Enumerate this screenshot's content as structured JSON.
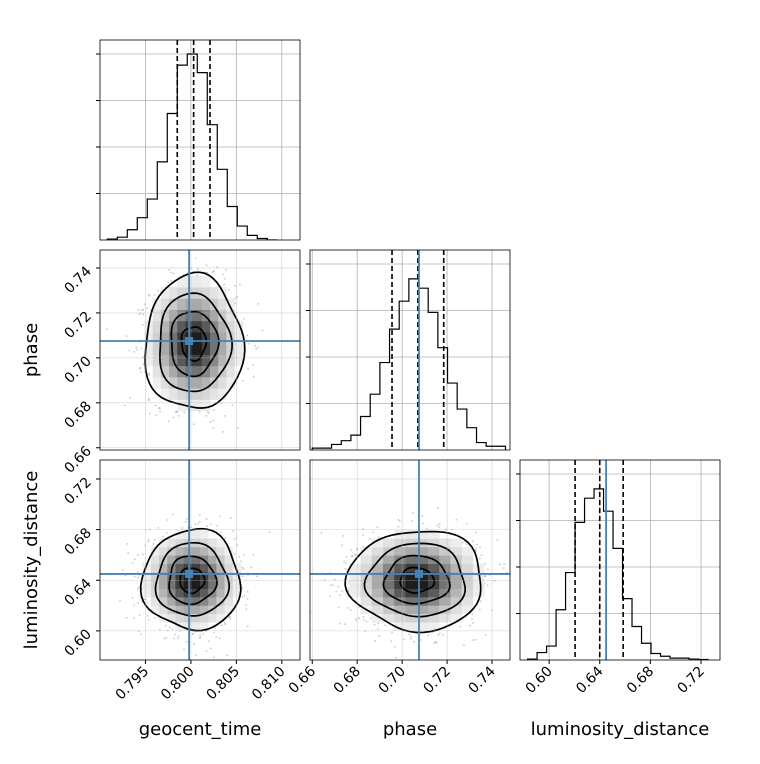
{
  "chart_data": {
    "type": "corner",
    "parameters": [
      "geocent_time",
      "phase",
      "luminosity_distance"
    ],
    "truth": {
      "geocent_time": 0.7998,
      "phase": 0.7075,
      "luminosity_distance": 0.645
    },
    "posterior_mean": {
      "geocent_time": 0.8002,
      "phase": 0.7065,
      "luminosity_distance": 0.64
    },
    "axes": {
      "geocent_time": {
        "range": [
          0.79,
          0.812
        ],
        "ticks": [
          "0.795",
          "0.800",
          "0.805",
          "0.810"
        ]
      },
      "phase": {
        "range": [
          0.659,
          0.748
        ],
        "ticks": [
          "0.66",
          "0.68",
          "0.70",
          "0.72",
          "0.74"
        ]
      },
      "luminosity_distance": {
        "range": [
          0.577,
          0.735
        ],
        "ticks": [
          "0.60",
          "0.64",
          "0.68",
          "0.72"
        ]
      }
    },
    "histograms": [
      {
        "parameter": "geocent_time",
        "quantile_lines": [
          0.7985,
          0.8003,
          0.8021
        ],
        "bins": [
          [
            0.7908,
            0.7919,
            0.005
          ],
          [
            0.7919,
            0.793,
            0.015
          ],
          [
            0.793,
            0.7941,
            0.055
          ],
          [
            0.7941,
            0.7952,
            0.12
          ],
          [
            0.7952,
            0.7963,
            0.22
          ],
          [
            0.7963,
            0.7974,
            0.42
          ],
          [
            0.7974,
            0.7985,
            0.68
          ],
          [
            0.7985,
            0.7996,
            0.94
          ],
          [
            0.7996,
            0.8007,
            1.0
          ],
          [
            0.8007,
            0.8018,
            0.9
          ],
          [
            0.8018,
            0.8029,
            0.62
          ],
          [
            0.8029,
            0.804,
            0.38
          ],
          [
            0.804,
            0.8051,
            0.18
          ],
          [
            0.8051,
            0.8062,
            0.075
          ],
          [
            0.8062,
            0.8073,
            0.025
          ],
          [
            0.8073,
            0.8084,
            0.008
          ],
          [
            0.8084,
            0.8095,
            0.0
          ]
        ]
      },
      {
        "parameter": "phase",
        "quantile_lines": [
          0.6955,
          0.707,
          0.7185
        ],
        "bins": [
          [
            0.66,
            0.6643,
            0.01
          ],
          [
            0.6643,
            0.6686,
            0.01
          ],
          [
            0.6686,
            0.6729,
            0.03
          ],
          [
            0.6729,
            0.6772,
            0.05
          ],
          [
            0.6772,
            0.6815,
            0.08
          ],
          [
            0.6815,
            0.6858,
            0.18
          ],
          [
            0.6858,
            0.6901,
            0.3
          ],
          [
            0.6901,
            0.6944,
            0.47
          ],
          [
            0.6944,
            0.6987,
            0.65
          ],
          [
            0.6987,
            0.703,
            0.8
          ],
          [
            0.703,
            0.7073,
            0.92
          ],
          [
            0.7073,
            0.7116,
            0.87
          ],
          [
            0.7116,
            0.7159,
            0.74
          ],
          [
            0.7159,
            0.7202,
            0.55
          ],
          [
            0.7202,
            0.7245,
            0.36
          ],
          [
            0.7245,
            0.7288,
            0.22
          ],
          [
            0.7288,
            0.7331,
            0.12
          ],
          [
            0.7331,
            0.7374,
            0.04
          ],
          [
            0.7374,
            0.7417,
            0.02
          ],
          [
            0.7417,
            0.746,
            0.02
          ]
        ]
      },
      {
        "parameter": "luminosity_distance",
        "quantile_lines": [
          0.6205,
          0.64,
          0.6585
        ],
        "bins": [
          [
            0.583,
            0.5905,
            0.005
          ],
          [
            0.5905,
            0.598,
            0.04
          ],
          [
            0.598,
            0.6055,
            0.075
          ],
          [
            0.6055,
            0.613,
            0.27
          ],
          [
            0.613,
            0.6205,
            0.47
          ],
          [
            0.6205,
            0.628,
            0.74
          ],
          [
            0.628,
            0.6355,
            0.87
          ],
          [
            0.6355,
            0.643,
            0.92
          ],
          [
            0.643,
            0.6505,
            0.8
          ],
          [
            0.6505,
            0.658,
            0.6
          ],
          [
            0.658,
            0.6655,
            0.33
          ],
          [
            0.6655,
            0.673,
            0.18
          ],
          [
            0.673,
            0.6805,
            0.09
          ],
          [
            0.6805,
            0.688,
            0.035
          ],
          [
            0.688,
            0.6955,
            0.02
          ],
          [
            0.6955,
            0.703,
            0.01
          ],
          [
            0.703,
            0.7105,
            0.01
          ],
          [
            0.7105,
            0.718,
            0.005
          ],
          [
            0.718,
            0.7255,
            0.003
          ]
        ]
      }
    ],
    "scatter_panels": [
      {
        "x": "geocent_time",
        "y": "phase",
        "center": [
          0.8003,
          0.7065
        ],
        "sigma": [
          0.00225,
          0.0125
        ]
      },
      {
        "x": "geocent_time",
        "y": "luminosity_distance",
        "center": [
          0.8001,
          0.64
        ],
        "sigma": [
          0.00225,
          0.0165
        ]
      },
      {
        "x": "phase",
        "y": "luminosity_distance",
        "center": [
          0.7065,
          0.64
        ],
        "sigma": [
          0.0125,
          0.0165
        ]
      }
    ],
    "contour_levels_sigma": [
      0.6,
      1.15,
      1.75,
      2.4
    ],
    "colors": {
      "truth_line": "#4682b4",
      "hist_line": "#000000",
      "grid": "#b0b0b0",
      "scatter": "#888888"
    },
    "grid": true
  }
}
